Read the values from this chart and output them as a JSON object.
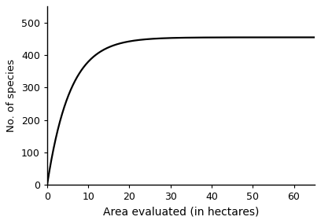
{
  "title": "",
  "xlabel": "Area evaluated (in hectares)",
  "ylabel": "No. of species",
  "xlim": [
    0,
    65
  ],
  "ylim": [
    0,
    550
  ],
  "xticks": [
    0,
    10,
    20,
    30,
    40,
    50,
    60
  ],
  "yticks": [
    0,
    100,
    200,
    300,
    400,
    500
  ],
  "curve_color": "#000000",
  "curve_linewidth": 1.6,
  "background_color": "#ffffff",
  "asymptote": 455,
  "b": 0.18,
  "xlabel_fontsize": 10,
  "ylabel_fontsize": 9.5,
  "tick_fontsize": 9
}
